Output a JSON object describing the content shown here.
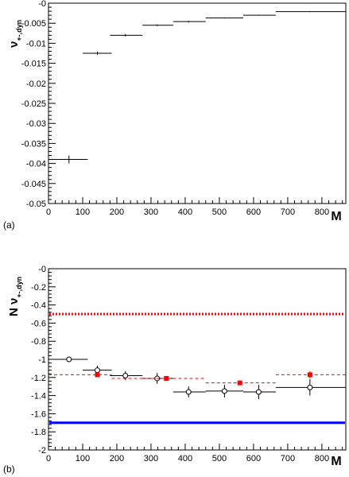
{
  "chart_data": [
    {
      "type": "scatter",
      "panel_label": "(a)",
      "xlabel": "M",
      "ylabel_main": "ν",
      "ylabel_sub": "+-,dyn",
      "xlim": [
        0,
        870
      ],
      "ylim": [
        -0.05,
        0
      ],
      "xticks": [
        0,
        100,
        200,
        300,
        400,
        500,
        600,
        700,
        800
      ],
      "yticks": [
        0,
        -0.005,
        -0.01,
        -0.015,
        -0.02,
        -0.025,
        -0.03,
        -0.035,
        -0.04,
        -0.045,
        -0.05
      ],
      "ytick_labels": [
        "-0",
        "-0.005",
        "-0.01",
        "-0.015",
        "-0.02",
        "-0.025",
        "-0.03",
        "-0.035",
        "-0.04",
        "-0.045",
        "-0.05"
      ],
      "grid": false,
      "series": [
        {
          "color": "#000000",
          "marker": "none",
          "points": [
            {
              "x": 60,
              "xlo": 0,
              "xhi": 115,
              "y": -0.039,
              "yerr": 0.001
            },
            {
              "x": 143,
              "xlo": 100,
              "xhi": 185,
              "y": -0.0125,
              "yerr": 0.0004
            },
            {
              "x": 225,
              "xlo": 180,
              "xhi": 275,
              "y": -0.008,
              "yerr": 0.0003
            },
            {
              "x": 318,
              "xlo": 275,
              "xhi": 365,
              "y": -0.0055,
              "yerr": 0.0002
            },
            {
              "x": 410,
              "xlo": 365,
              "xhi": 460,
              "y": -0.0046,
              "yerr": 0.0002
            },
            {
              "x": 515,
              "xlo": 460,
              "xhi": 570,
              "y": -0.0037,
              "yerr": 0.0001
            },
            {
              "x": 615,
              "xlo": 570,
              "xhi": 665,
              "y": -0.003,
              "yerr": 0.0001
            },
            {
              "x": 765,
              "xlo": 665,
              "xhi": 870,
              "y": -0.0021,
              "yerr": 0.0001
            }
          ]
        }
      ]
    },
    {
      "type": "scatter",
      "panel_label": "(b)",
      "xlabel": "M",
      "ylabel_main": "N ν",
      "ylabel_sub": "+-,dyn",
      "xlim": [
        0,
        870
      ],
      "ylim": [
        -2,
        0
      ],
      "xticks": [
        0,
        100,
        200,
        300,
        400,
        500,
        600,
        700,
        800
      ],
      "yticks": [
        0,
        -0.2,
        -0.4,
        -0.6,
        -0.8,
        -1,
        -1.2,
        -1.4,
        -1.6,
        -1.8,
        -2
      ],
      "ytick_labels": [
        "-0",
        "-0.2",
        "-0.4",
        "-0.6",
        "-0.8",
        "-1",
        "-1.2",
        "-1.4",
        "-1.6",
        "-1.8",
        "-2"
      ],
      "grid": false,
      "hlines": [
        {
          "y": -0.5,
          "color": "#ff0000",
          "style": "dotted"
        },
        {
          "y": -1.7,
          "color": "#0000ff",
          "style": "solid"
        }
      ],
      "series": [
        {
          "color": "#000000",
          "marker": "open-circle",
          "points": [
            {
              "x": 60,
              "xlo": 0,
              "xhi": 115,
              "y": -1.0,
              "yerr": 0.03
            },
            {
              "x": 143,
              "xlo": 100,
              "xhi": 185,
              "y": -1.12,
              "yerr": 0.05
            },
            {
              "x": 225,
              "xlo": 180,
              "xhi": 275,
              "y": -1.18,
              "yerr": 0.05
            },
            {
              "x": 318,
              "xlo": 275,
              "xhi": 365,
              "y": -1.21,
              "yerr": 0.06
            },
            {
              "x": 410,
              "xlo": 365,
              "xhi": 460,
              "y": -1.36,
              "yerr": 0.06
            },
            {
              "x": 515,
              "xlo": 460,
              "xhi": 570,
              "y": -1.35,
              "yerr": 0.07
            },
            {
              "x": 615,
              "xlo": 570,
              "xhi": 665,
              "y": -1.36,
              "yerr": 0.08
            },
            {
              "x": 765,
              "xlo": 665,
              "xhi": 870,
              "y": -1.31,
              "yerr": 0.09
            }
          ]
        },
        {
          "color": "#ff0000",
          "marker": "filled-square",
          "line": "dashed",
          "points": [
            {
              "x": 143,
              "xlo": 0,
              "xhi": 185,
              "y": -1.17,
              "yerr": 0.02
            },
            {
              "x": 345,
              "xlo": 185,
              "xhi": 460,
              "y": -1.21,
              "yerr": 0.02
            },
            {
              "x": 560,
              "xlo": 460,
              "xhi": 665,
              "y": -1.26,
              "yerr": 0.02
            },
            {
              "x": 765,
              "xlo": 665,
              "xhi": 870,
              "y": -1.17,
              "yerr": 0.04
            }
          ]
        }
      ]
    }
  ]
}
